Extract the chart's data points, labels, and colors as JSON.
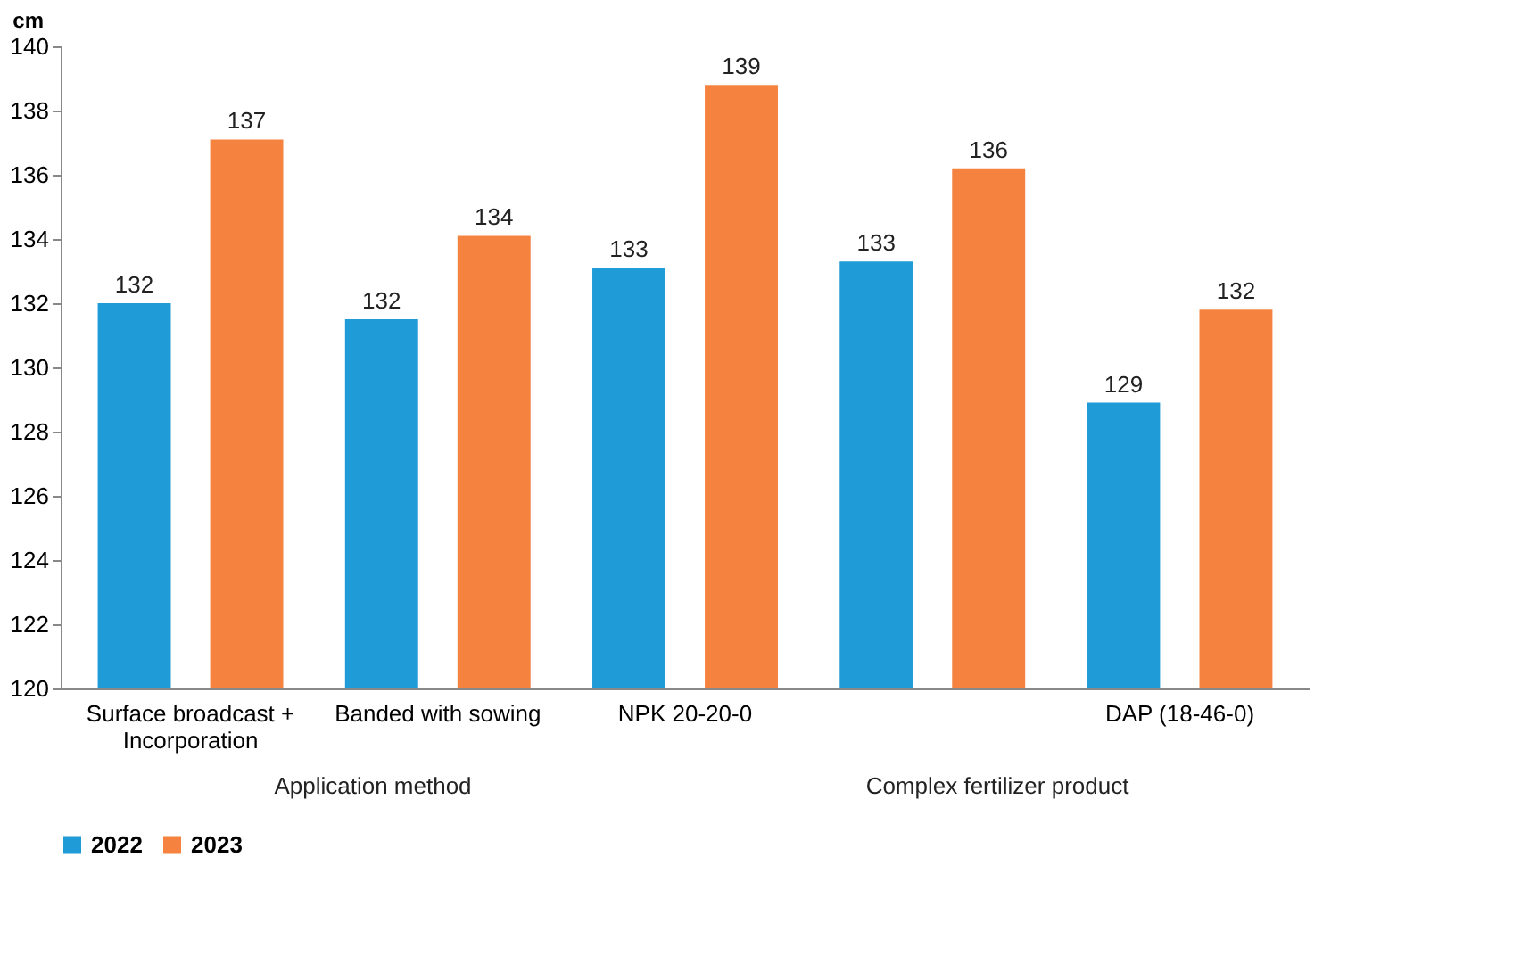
{
  "chart_data": {
    "type": "bar",
    "ylabel": "cm",
    "categories": [
      "Surface broadcast +\nIncorporation",
      "Banded with sowing",
      "NPK 20-20-0",
      null,
      "DAP (18-46-0)"
    ],
    "series": [
      {
        "name": "2022",
        "color": "#1f9bd7",
        "values": [
          132.0,
          131.5,
          133.1,
          133.3,
          128.9
        ],
        "value_labels": [
          "132",
          "132",
          "133",
          "133",
          "129"
        ]
      },
      {
        "name": "2023",
        "color": "#f5833f",
        "values": [
          137.1,
          134.1,
          138.8,
          136.2,
          131.8
        ],
        "value_labels": [
          "137",
          "134",
          "139",
          "136",
          "132"
        ]
      }
    ],
    "ylim": [
      120,
      140
    ],
    "yticks": [
      120,
      122,
      124,
      126,
      128,
      130,
      132,
      134,
      136,
      138,
      140
    ],
    "grid": false,
    "legend": "bottom",
    "annotations": [
      "Application method",
      "Complex fertilizer product"
    ]
  }
}
